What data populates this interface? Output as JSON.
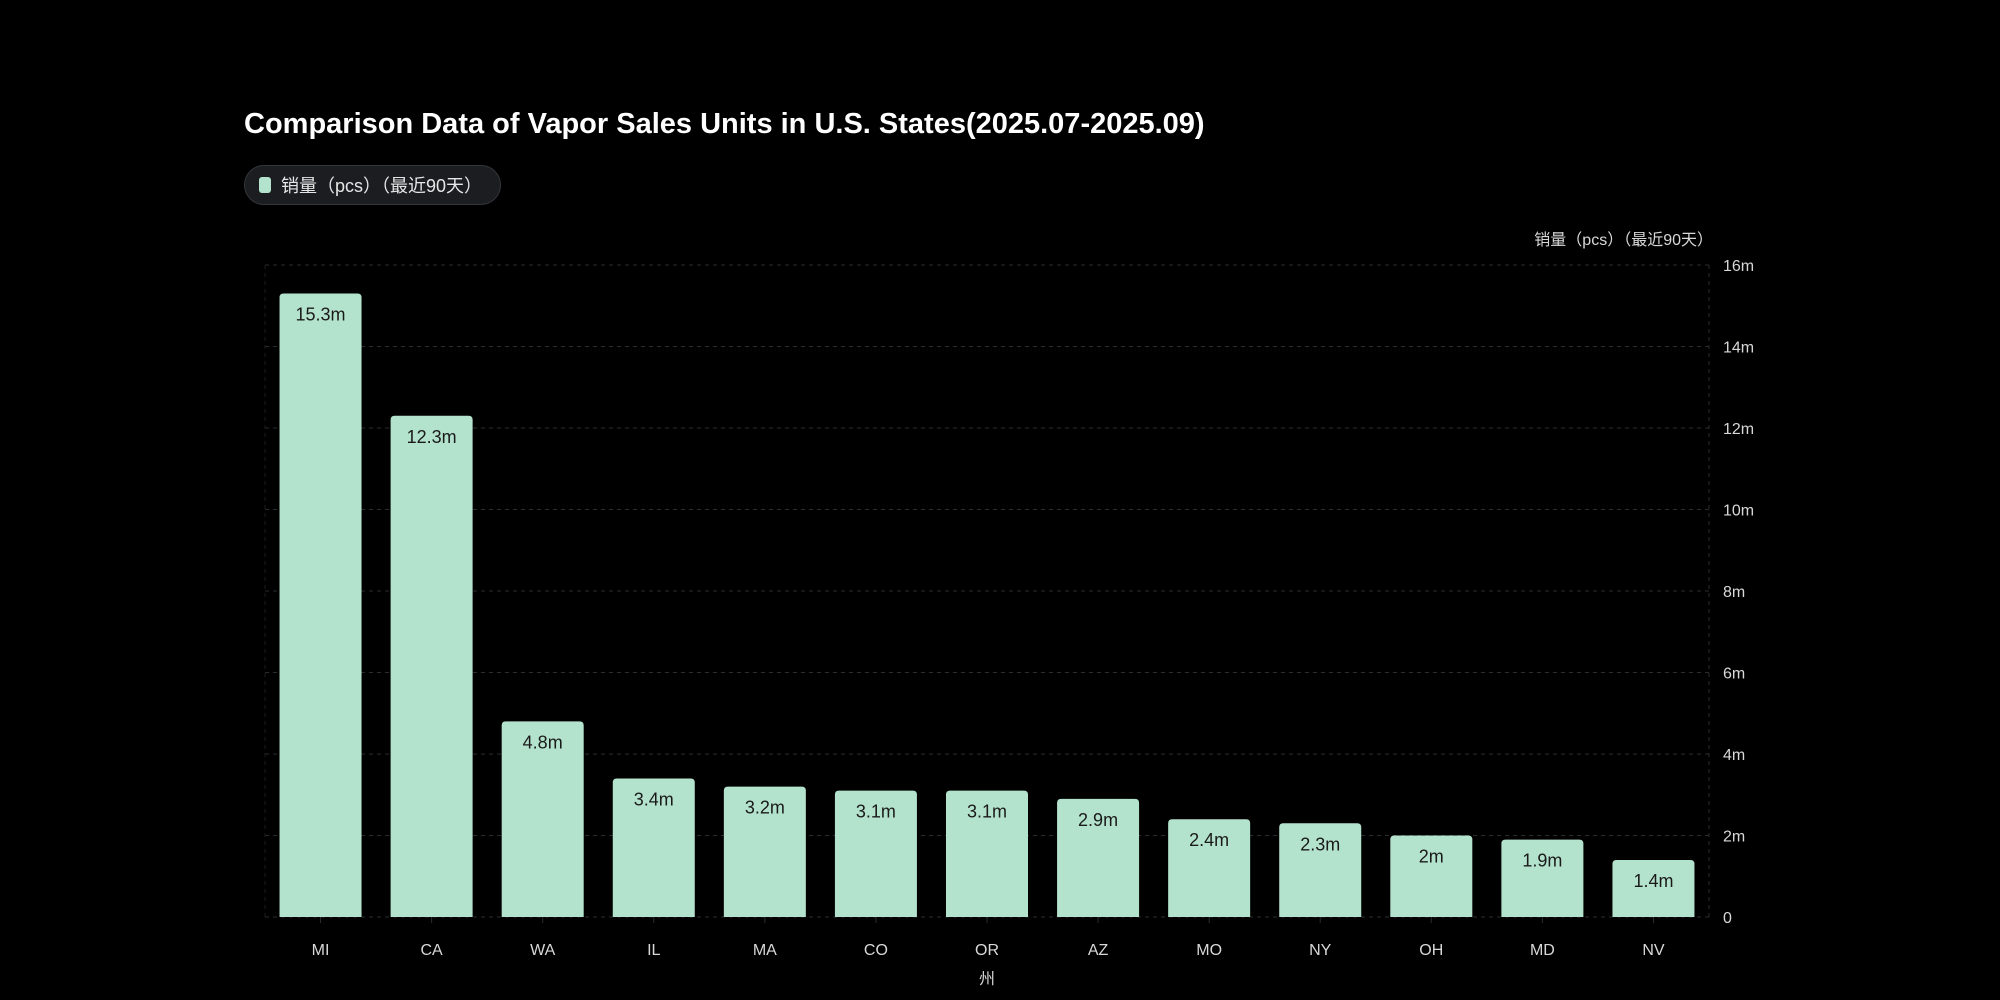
{
  "chart_data": {
    "type": "bar",
    "title": "Comparison Data of Vapor Sales Units in U.S. States(2025.07-2025.09)",
    "legend": {
      "label": "销量（pcs）（最近90天）",
      "placement": "top-left"
    },
    "xlabel": "州",
    "ylabel": "销量（pcs）（最近90天）",
    "y_axis_side": "right",
    "categories": [
      "MI",
      "CA",
      "WA",
      "IL",
      "MA",
      "CO",
      "OR",
      "AZ",
      "MO",
      "NY",
      "OH",
      "MD",
      "NV"
    ],
    "series": [
      {
        "name": "销量（pcs）（最近90天）",
        "values": [
          15300000,
          12300000,
          4800000,
          3400000,
          3200000,
          3100000,
          3100000,
          2900000,
          2400000,
          2300000,
          2000000,
          1900000,
          1400000
        ],
        "data_labels": [
          "15.3m",
          "12.3m",
          "4.8m",
          "3.4m",
          "3.2m",
          "3.1m",
          "3.1m",
          "2.9m",
          "2.4m",
          "2.3m",
          "2m",
          "1.9m",
          "1.4m"
        ]
      }
    ],
    "ylim": [
      0,
      16000000
    ],
    "yticks": [
      0,
      2000000,
      4000000,
      6000000,
      8000000,
      10000000,
      12000000,
      14000000,
      16000000
    ],
    "ytick_labels": [
      "0",
      "2m",
      "4m",
      "6m",
      "8m",
      "10m",
      "12m",
      "14m",
      "16m"
    ],
    "grid": true,
    "colors": {
      "bar": "#b4e3cd",
      "background": "#000000"
    }
  }
}
